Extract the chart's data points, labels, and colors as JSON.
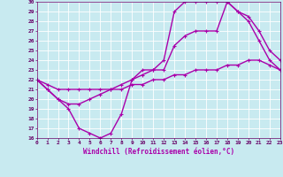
{
  "xlabel": "Windchill (Refroidissement éolien,°C)",
  "xlim": [
    0,
    23
  ],
  "ylim": [
    16,
    30
  ],
  "xticks": [
    0,
    1,
    2,
    3,
    4,
    5,
    6,
    7,
    8,
    9,
    10,
    11,
    12,
    13,
    14,
    15,
    16,
    17,
    18,
    19,
    20,
    21,
    22,
    23
  ],
  "yticks": [
    16,
    17,
    18,
    19,
    20,
    21,
    22,
    23,
    24,
    25,
    26,
    27,
    28,
    29,
    30
  ],
  "background_color": "#c8eaf0",
  "grid_color": "#ffffff",
  "line_color": "#aa00aa",
  "line_width": 1.0,
  "marker": "+",
  "marker_size": 3,
  "lines": [
    {
      "x": [
        0,
        1,
        2,
        3,
        4,
        5,
        6,
        7,
        8,
        9,
        10,
        11,
        12,
        13,
        14,
        15,
        16,
        17,
        18,
        19,
        20,
        21,
        22,
        23
      ],
      "y": [
        22,
        21,
        20,
        19,
        17,
        16.5,
        16,
        16.5,
        18.5,
        22,
        23,
        23,
        24,
        29,
        30,
        30,
        30,
        30,
        30,
        29,
        28,
        26,
        24,
        23
      ]
    },
    {
      "x": [
        0,
        1,
        2,
        3,
        4,
        5,
        6,
        7,
        8,
        9,
        10,
        11,
        12,
        13,
        14,
        15,
        16,
        17,
        18,
        19,
        20,
        21,
        22,
        23
      ],
      "y": [
        22,
        21,
        20,
        19.5,
        19.5,
        20,
        20.5,
        21,
        21.5,
        22,
        22.5,
        23,
        23,
        25.5,
        26.5,
        27,
        27,
        27,
        30,
        29,
        28.5,
        27,
        25,
        24
      ]
    },
    {
      "x": [
        0,
        1,
        2,
        3,
        4,
        5,
        6,
        7,
        8,
        9,
        10,
        11,
        12,
        13,
        14,
        15,
        16,
        17,
        18,
        19,
        20,
        21,
        22,
        23
      ],
      "y": [
        22,
        21.5,
        21,
        21,
        21,
        21,
        21,
        21,
        21,
        21.5,
        21.5,
        22,
        22,
        22.5,
        22.5,
        23,
        23,
        23,
        23.5,
        23.5,
        24,
        24,
        23.5,
        23
      ]
    }
  ]
}
